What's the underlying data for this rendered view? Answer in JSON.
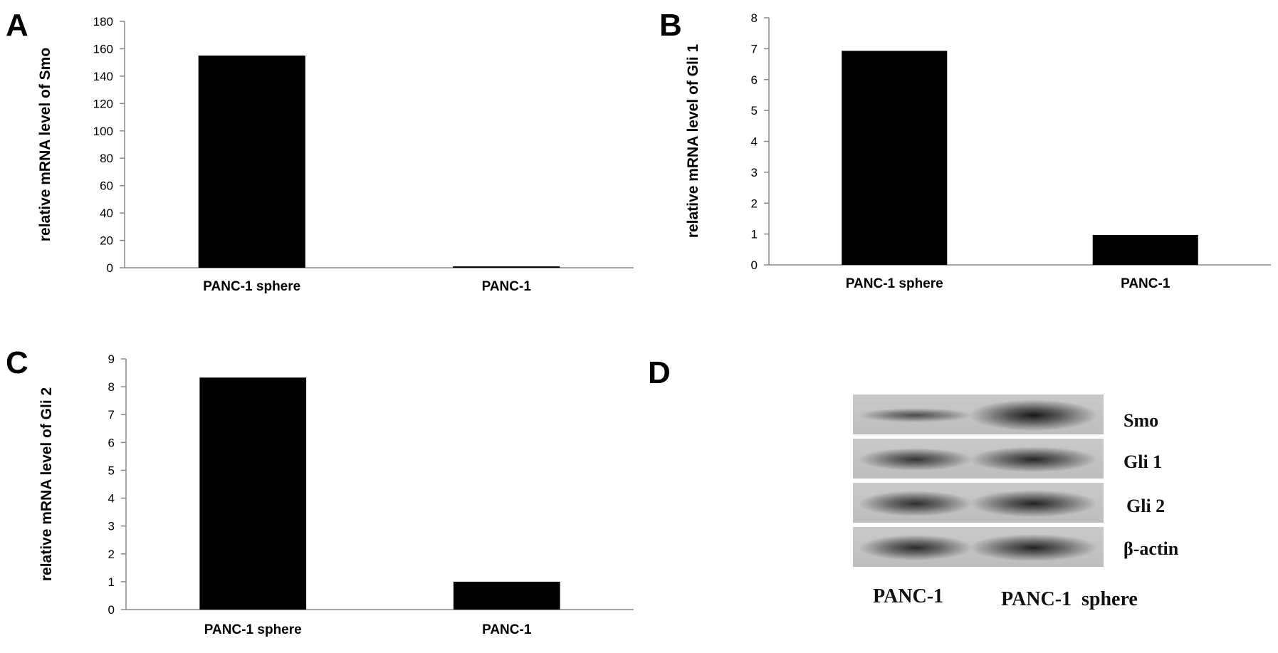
{
  "panels": {
    "A": "A",
    "B": "B",
    "C": "C",
    "D": "D"
  },
  "chart_data": [
    {
      "id": "A",
      "type": "bar",
      "categories": [
        "PANC-1 sphere",
        "PANC-1"
      ],
      "values": [
        155,
        1
      ],
      "ylabel": "relative mRNA level of Smo",
      "xlabel": "",
      "ylim": [
        0,
        180
      ],
      "yticks": [
        0,
        20,
        40,
        60,
        80,
        100,
        120,
        140,
        160,
        180
      ],
      "grid": false,
      "bar_color": "#000000"
    },
    {
      "id": "B",
      "type": "bar",
      "categories": [
        "PANC-1 sphere",
        "PANC-1"
      ],
      "values": [
        6.93,
        0.97
      ],
      "ylabel": "relative mRNA level of Gli 1",
      "xlabel": "",
      "ylim": [
        0,
        8
      ],
      "yticks": [
        0,
        1,
        2,
        3,
        4,
        5,
        6,
        7,
        8
      ],
      "grid": false,
      "bar_color": "#000000"
    },
    {
      "id": "C",
      "type": "bar",
      "categories": [
        "PANC-1 sphere",
        "PANC-1"
      ],
      "values": [
        8.33,
        1.0
      ],
      "ylabel": "relative mRNA level of Gli 2",
      "xlabel": "",
      "ylim": [
        0,
        9
      ],
      "yticks": [
        0,
        1,
        2,
        3,
        4,
        5,
        6,
        7,
        8,
        9
      ],
      "grid": false,
      "bar_color": "#000000"
    }
  ],
  "western_blot": {
    "bands": [
      {
        "label": "Smo",
        "left_intensity": 0.35,
        "right_intensity": 1.0
      },
      {
        "label": "Gli 1",
        "left_intensity": 0.65,
        "right_intensity": 0.8
      },
      {
        "label": "Gli 2",
        "left_intensity": 0.75,
        "right_intensity": 0.85
      },
      {
        "label": "β-actin",
        "left_intensity": 0.8,
        "right_intensity": 0.85
      }
    ],
    "lanes": [
      "PANC-1",
      "PANC-1  sphere"
    ]
  }
}
